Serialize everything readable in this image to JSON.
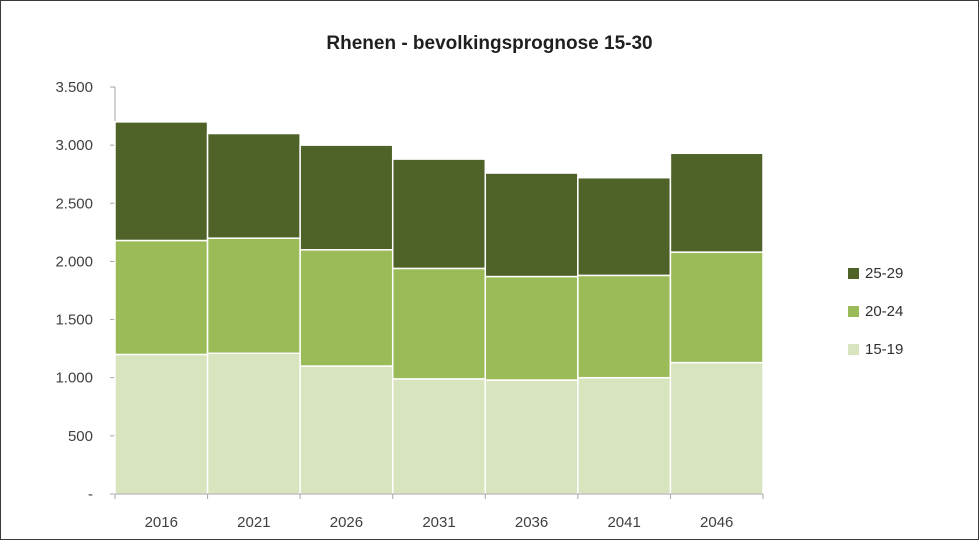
{
  "chart_data": {
    "type": "bar",
    "stacked": true,
    "title": "Rhenen - bevolkingsprognose 15-30",
    "xlabel": "",
    "ylabel": "",
    "categories": [
      "2016",
      "2021",
      "2026",
      "2031",
      "2036",
      "2041",
      "2046"
    ],
    "series": [
      {
        "name": "15-19",
        "color": "#d7e4bd",
        "values": [
          1200,
          1210,
          1100,
          990,
          980,
          1000,
          1130
        ]
      },
      {
        "name": "20-24",
        "color": "#9bbb59",
        "values": [
          980,
          990,
          1000,
          950,
          890,
          880,
          950
        ]
      },
      {
        "name": "25-29",
        "color": "#4f6228",
        "values": [
          1020,
          900,
          900,
          940,
          890,
          840,
          850
        ]
      }
    ],
    "ylim": [
      0,
      3500
    ],
    "yticks": [
      0,
      500,
      1000,
      1500,
      2000,
      2500,
      3000,
      3500
    ],
    "ytick_labels": [
      "-",
      "500",
      "1.000",
      "1.500",
      "2.000",
      "2.500",
      "3.000",
      "3.500"
    ],
    "grid": false,
    "legend_position": "right"
  }
}
